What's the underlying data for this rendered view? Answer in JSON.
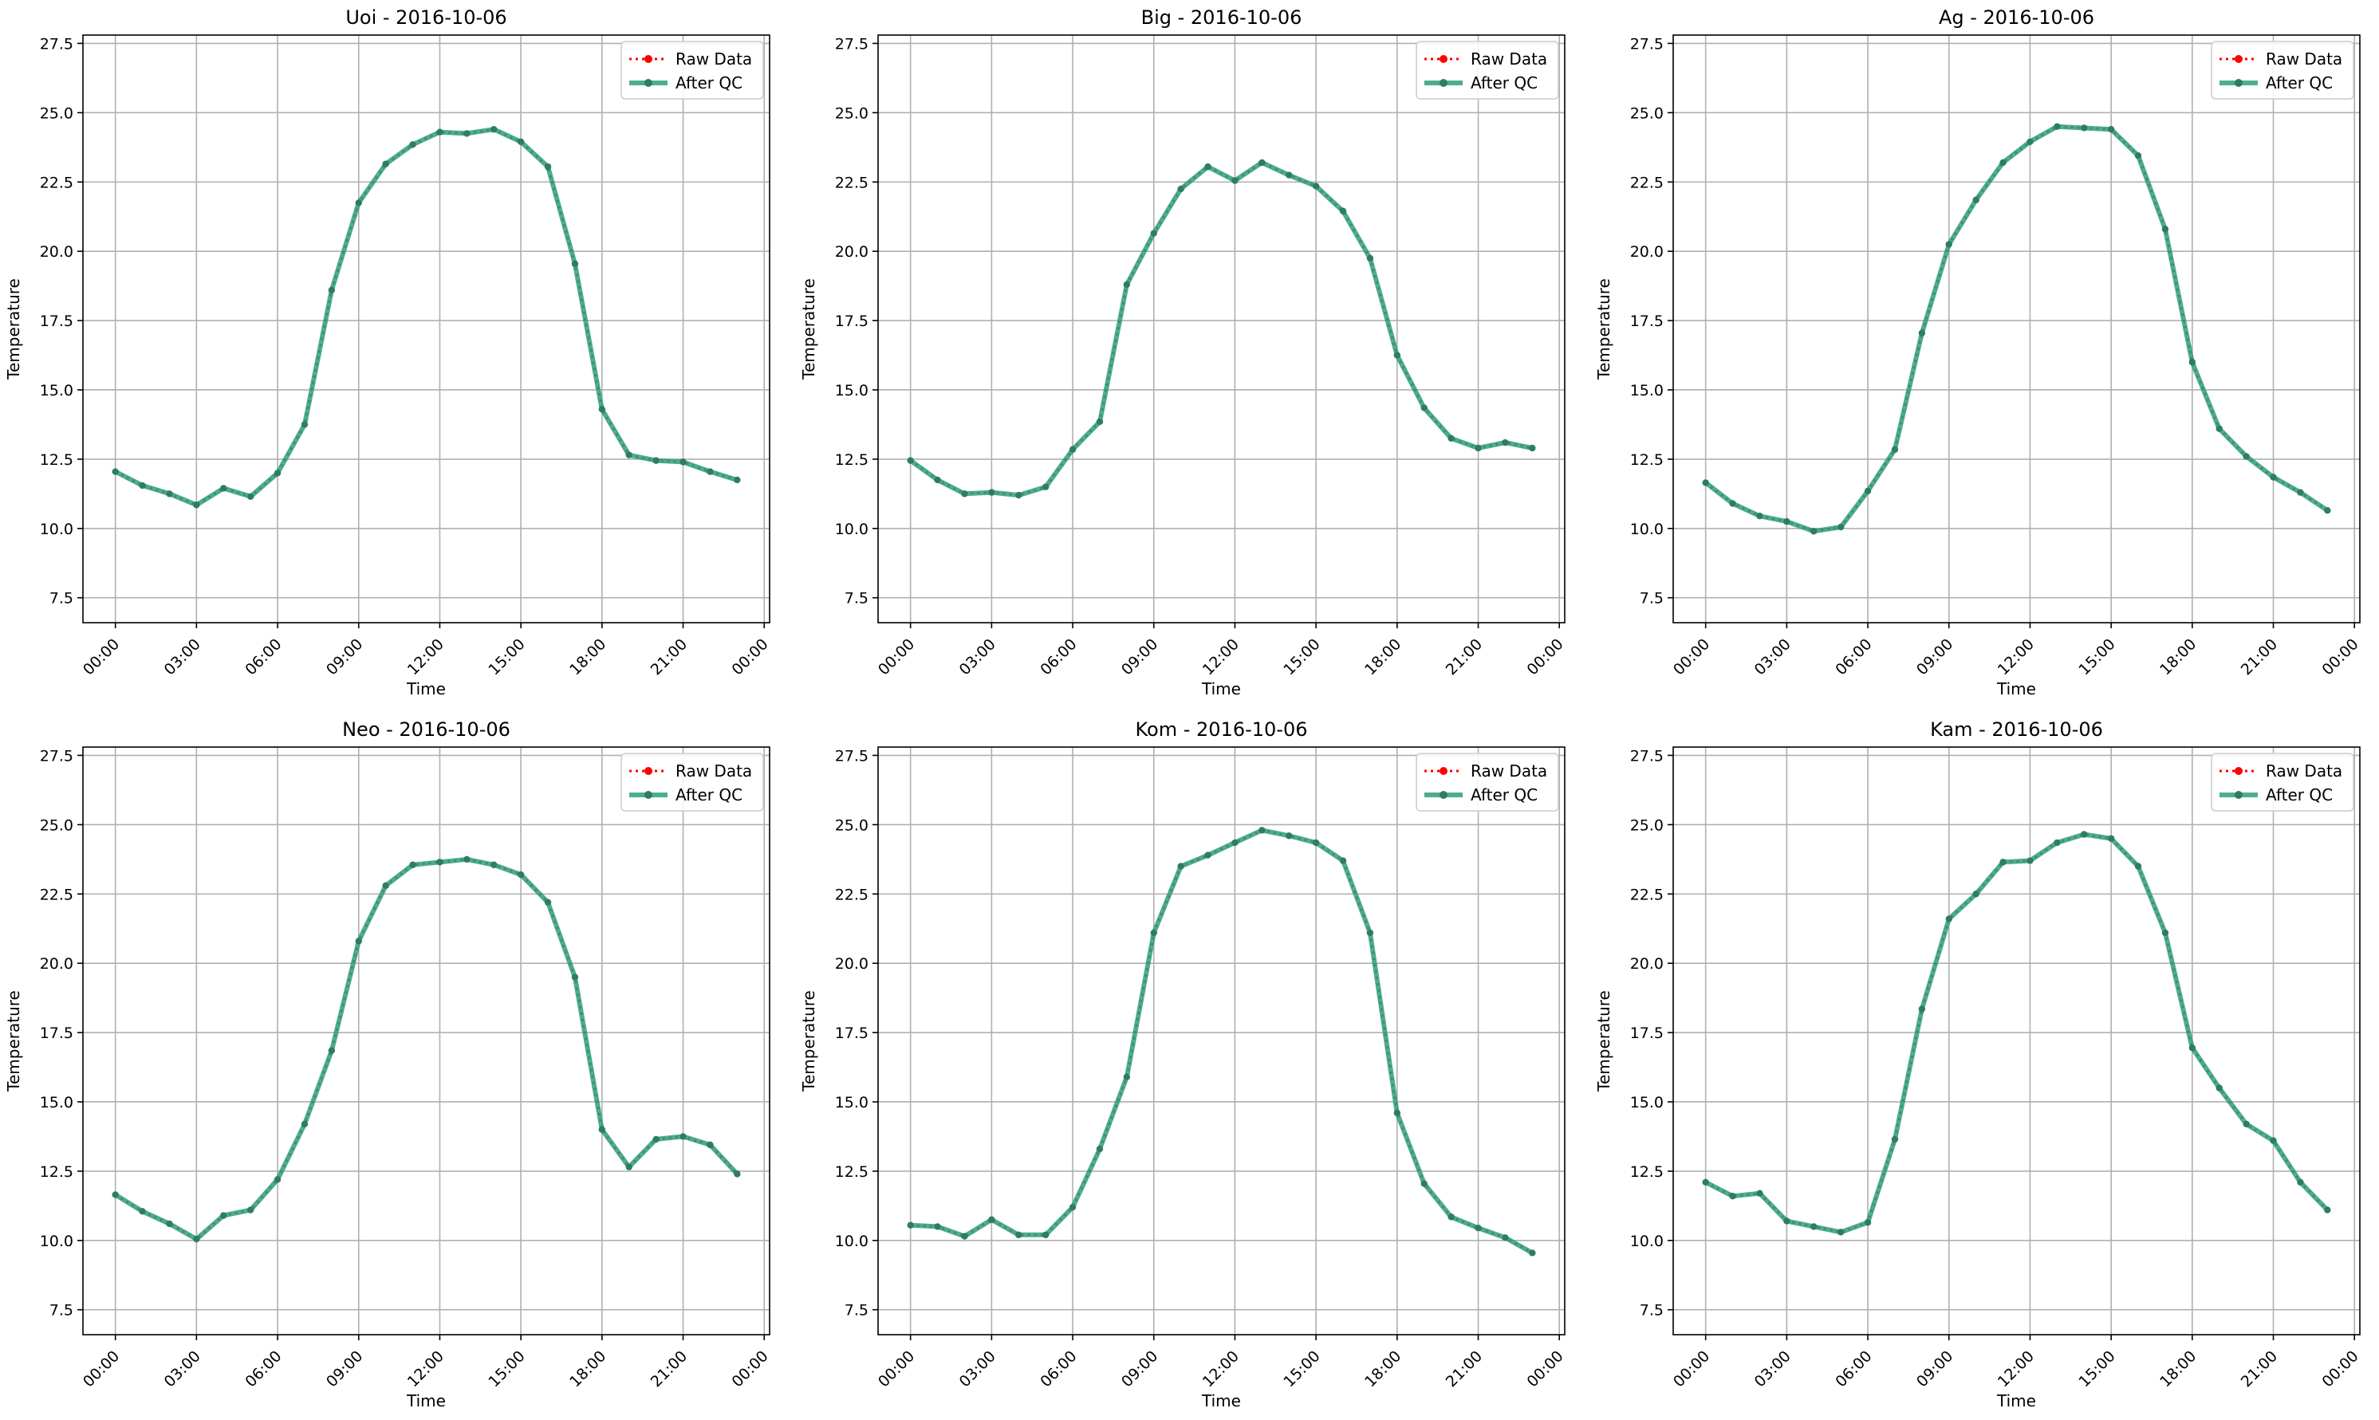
{
  "figure": {
    "layout": "2x3 grid of line charts",
    "colors": {
      "raw": "#ff0000",
      "qc": "#2ca07a",
      "marker": "#2e7d63",
      "grid": "#b0b0b0",
      "axis": "#000000"
    }
  },
  "chart_data": [
    {
      "type": "line",
      "title": "Uoi - 2016-10-06",
      "xlabel": "Time",
      "ylabel": "Temperature",
      "xticks": [
        "00:00",
        "03:00",
        "06:00",
        "09:00",
        "12:00",
        "15:00",
        "18:00",
        "21:00",
        "00:00"
      ],
      "xlim": [
        "2016-10-05 22:48",
        "2016-10-07 00:12"
      ],
      "ylim": [
        6.6,
        27.8
      ],
      "yticks": [
        "7.5",
        "10.0",
        "12.5",
        "15.0",
        "17.5",
        "20.0",
        "22.5",
        "25.0",
        "27.5"
      ],
      "grid": true,
      "legend_position": "top-right",
      "x": [
        "00:00",
        "01:00",
        "02:00",
        "03:00",
        "04:00",
        "05:00",
        "06:00",
        "07:00",
        "08:00",
        "09:00",
        "10:00",
        "11:00",
        "12:00",
        "13:00",
        "14:00",
        "15:00",
        "16:00",
        "17:00",
        "18:00",
        "19:00",
        "20:00",
        "21:00",
        "22:00",
        "23:00"
      ],
      "series": [
        {
          "name": "Raw Data",
          "values": [
            12.05,
            11.55,
            11.25,
            10.85,
            11.45,
            11.15,
            12.0,
            13.75,
            18.6,
            21.75,
            23.15,
            23.85,
            24.3,
            24.25,
            24.4,
            23.95,
            23.05,
            19.55,
            14.3,
            12.65,
            12.45,
            12.4,
            12.05,
            11.75
          ]
        },
        {
          "name": "After QC",
          "values": [
            12.05,
            11.55,
            11.25,
            10.85,
            11.45,
            11.15,
            12.0,
            13.75,
            18.6,
            21.75,
            23.15,
            23.85,
            24.3,
            24.25,
            24.4,
            23.95,
            23.05,
            19.55,
            14.3,
            12.65,
            12.45,
            12.4,
            12.05,
            11.75
          ]
        }
      ]
    },
    {
      "type": "line",
      "title": "Big - 2016-10-06",
      "xlabel": "Time",
      "ylabel": "Temperature",
      "xticks": [
        "00:00",
        "03:00",
        "06:00",
        "09:00",
        "12:00",
        "15:00",
        "18:00",
        "21:00",
        "00:00"
      ],
      "xlim": [
        "2016-10-05 22:48",
        "2016-10-07 00:12"
      ],
      "ylim": [
        6.6,
        27.8
      ],
      "yticks": [
        "7.5",
        "10.0",
        "12.5",
        "15.0",
        "17.5",
        "20.0",
        "22.5",
        "25.0",
        "27.5"
      ],
      "grid": true,
      "legend_position": "top-right",
      "x": [
        "00:00",
        "01:00",
        "02:00",
        "03:00",
        "04:00",
        "05:00",
        "06:00",
        "07:00",
        "08:00",
        "09:00",
        "10:00",
        "11:00",
        "12:00",
        "13:00",
        "14:00",
        "15:00",
        "16:00",
        "17:00",
        "18:00",
        "19:00",
        "20:00",
        "21:00",
        "22:00",
        "23:00"
      ],
      "series": [
        {
          "name": "Raw Data",
          "values": [
            12.45,
            11.75,
            11.25,
            11.3,
            11.2,
            11.5,
            12.85,
            13.85,
            18.8,
            20.65,
            22.25,
            23.05,
            22.55,
            23.2,
            22.75,
            22.35,
            21.45,
            19.75,
            16.25,
            14.35,
            13.25,
            12.9,
            13.1,
            12.9
          ]
        },
        {
          "name": "After QC",
          "values": [
            12.45,
            11.75,
            11.25,
            11.3,
            11.2,
            11.5,
            12.85,
            13.85,
            18.8,
            20.65,
            22.25,
            23.05,
            22.55,
            23.2,
            22.75,
            22.35,
            21.45,
            19.75,
            16.25,
            14.35,
            13.25,
            12.9,
            13.1,
            12.9
          ]
        }
      ]
    },
    {
      "type": "line",
      "title": "Ag - 2016-10-06",
      "xlabel": "Time",
      "ylabel": "Temperature",
      "xticks": [
        "00:00",
        "03:00",
        "06:00",
        "09:00",
        "12:00",
        "15:00",
        "18:00",
        "21:00",
        "00:00"
      ],
      "xlim": [
        "2016-10-05 22:48",
        "2016-10-07 00:12"
      ],
      "ylim": [
        6.6,
        27.8
      ],
      "yticks": [
        "7.5",
        "10.0",
        "12.5",
        "15.0",
        "17.5",
        "20.0",
        "22.5",
        "25.0",
        "27.5"
      ],
      "grid": true,
      "legend_position": "top-right",
      "x": [
        "00:00",
        "01:00",
        "02:00",
        "03:00",
        "04:00",
        "05:00",
        "06:00",
        "07:00",
        "08:00",
        "09:00",
        "10:00",
        "11:00",
        "12:00",
        "13:00",
        "14:00",
        "15:00",
        "16:00",
        "17:00",
        "18:00",
        "19:00",
        "20:00",
        "21:00",
        "22:00",
        "23:00"
      ],
      "series": [
        {
          "name": "Raw Data",
          "values": [
            11.65,
            10.9,
            10.45,
            10.25,
            9.9,
            10.05,
            11.35,
            12.85,
            17.05,
            20.25,
            21.85,
            23.2,
            23.95,
            24.5,
            24.45,
            24.4,
            23.45,
            20.8,
            16.0,
            13.6,
            12.6,
            11.85,
            11.3,
            10.65
          ]
        },
        {
          "name": "After QC",
          "values": [
            11.65,
            10.9,
            10.45,
            10.25,
            9.9,
            10.05,
            11.35,
            12.85,
            17.05,
            20.25,
            21.85,
            23.2,
            23.95,
            24.5,
            24.45,
            24.4,
            23.45,
            20.8,
            16.0,
            13.6,
            12.6,
            11.85,
            11.3,
            10.65
          ]
        }
      ]
    },
    {
      "type": "line",
      "title": "Neo - 2016-10-06",
      "xlabel": "Time",
      "ylabel": "Temperature",
      "xticks": [
        "00:00",
        "03:00",
        "06:00",
        "09:00",
        "12:00",
        "15:00",
        "18:00",
        "21:00",
        "00:00"
      ],
      "xlim": [
        "2016-10-05 22:48",
        "2016-10-07 00:12"
      ],
      "ylim": [
        6.6,
        27.8
      ],
      "yticks": [
        "7.5",
        "10.0",
        "12.5",
        "15.0",
        "17.5",
        "20.0",
        "22.5",
        "25.0",
        "27.5"
      ],
      "grid": true,
      "legend_position": "top-right",
      "x": [
        "00:00",
        "01:00",
        "02:00",
        "03:00",
        "04:00",
        "05:00",
        "06:00",
        "07:00",
        "08:00",
        "09:00",
        "10:00",
        "11:00",
        "12:00",
        "13:00",
        "14:00",
        "15:00",
        "16:00",
        "17:00",
        "18:00",
        "19:00",
        "20:00",
        "21:00",
        "22:00",
        "23:00"
      ],
      "series": [
        {
          "name": "Raw Data",
          "values": [
            11.65,
            11.05,
            10.6,
            10.05,
            10.9,
            11.1,
            12.2,
            14.2,
            16.85,
            20.8,
            22.8,
            23.55,
            23.65,
            23.75,
            23.55,
            23.2,
            22.2,
            19.5,
            14.0,
            12.65,
            13.65,
            13.75,
            13.45,
            12.4
          ]
        },
        {
          "name": "After QC",
          "values": [
            11.65,
            11.05,
            10.6,
            10.05,
            10.9,
            11.1,
            12.2,
            14.2,
            16.85,
            20.8,
            22.8,
            23.55,
            23.65,
            23.75,
            23.55,
            23.2,
            22.2,
            19.5,
            14.0,
            12.65,
            13.65,
            13.75,
            13.45,
            12.4
          ]
        }
      ]
    },
    {
      "type": "line",
      "title": "Kom - 2016-10-06",
      "xlabel": "Time",
      "ylabel": "Temperature",
      "xticks": [
        "00:00",
        "03:00",
        "06:00",
        "09:00",
        "12:00",
        "15:00",
        "18:00",
        "21:00",
        "00:00"
      ],
      "xlim": [
        "2016-10-05 22:48",
        "2016-10-07 00:12"
      ],
      "ylim": [
        6.6,
        27.8
      ],
      "yticks": [
        "7.5",
        "10.0",
        "12.5",
        "15.0",
        "17.5",
        "20.0",
        "22.5",
        "25.0",
        "27.5"
      ],
      "grid": true,
      "legend_position": "top-right",
      "x": [
        "00:00",
        "01:00",
        "02:00",
        "03:00",
        "04:00",
        "05:00",
        "06:00",
        "07:00",
        "08:00",
        "09:00",
        "10:00",
        "11:00",
        "12:00",
        "13:00",
        "14:00",
        "15:00",
        "16:00",
        "17:00",
        "18:00",
        "19:00",
        "20:00",
        "21:00",
        "22:00",
        "23:00"
      ],
      "series": [
        {
          "name": "Raw Data",
          "values": [
            10.55,
            10.5,
            10.15,
            10.75,
            10.2,
            10.2,
            11.2,
            13.3,
            15.9,
            21.1,
            23.5,
            23.9,
            24.35,
            24.8,
            24.6,
            24.35,
            23.7,
            21.1,
            14.6,
            12.05,
            10.85,
            10.45,
            10.1,
            9.55
          ]
        },
        {
          "name": "After QC",
          "values": [
            10.55,
            10.5,
            10.15,
            10.75,
            10.2,
            10.2,
            11.2,
            13.3,
            15.9,
            21.1,
            23.5,
            23.9,
            24.35,
            24.8,
            24.6,
            24.35,
            23.7,
            21.1,
            14.6,
            12.05,
            10.85,
            10.45,
            10.1,
            9.55
          ]
        }
      ]
    },
    {
      "type": "line",
      "title": "Kam - 2016-10-06",
      "xlabel": "Time",
      "ylabel": "Temperature",
      "xticks": [
        "00:00",
        "03:00",
        "06:00",
        "09:00",
        "12:00",
        "15:00",
        "18:00",
        "21:00",
        "00:00"
      ],
      "xlim": [
        "2016-10-05 22:48",
        "2016-10-07 00:12"
      ],
      "ylim": [
        6.6,
        27.8
      ],
      "yticks": [
        "7.5",
        "10.0",
        "12.5",
        "15.0",
        "17.5",
        "20.0",
        "22.5",
        "25.0",
        "27.5"
      ],
      "grid": true,
      "legend_position": "top-right",
      "x": [
        "00:00",
        "01:00",
        "02:00",
        "03:00",
        "04:00",
        "05:00",
        "06:00",
        "07:00",
        "08:00",
        "09:00",
        "10:00",
        "11:00",
        "12:00",
        "13:00",
        "14:00",
        "15:00",
        "16:00",
        "17:00",
        "18:00",
        "19:00",
        "20:00",
        "21:00",
        "22:00",
        "23:00"
      ],
      "series": [
        {
          "name": "Raw Data",
          "values": [
            12.1,
            11.6,
            11.7,
            10.7,
            10.5,
            10.3,
            10.65,
            13.65,
            18.35,
            21.6,
            22.5,
            23.65,
            23.7,
            24.35,
            24.65,
            24.5,
            23.5,
            21.1,
            16.95,
            15.5,
            14.2,
            13.6,
            12.1,
            11.1
          ]
        },
        {
          "name": "After QC",
          "values": [
            12.1,
            11.6,
            11.7,
            10.7,
            10.5,
            10.3,
            10.65,
            13.65,
            18.35,
            21.6,
            22.5,
            23.65,
            23.7,
            24.35,
            24.65,
            24.5,
            23.5,
            21.1,
            16.95,
            15.5,
            14.2,
            13.6,
            12.1,
            11.1
          ]
        }
      ]
    }
  ]
}
